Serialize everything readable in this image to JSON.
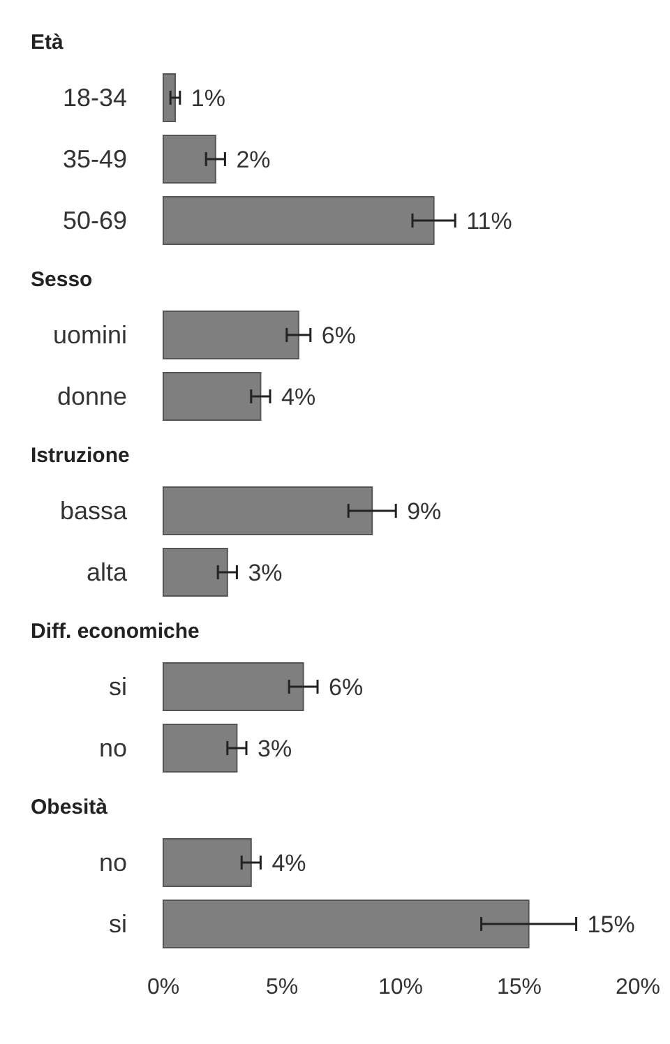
{
  "chart_data": {
    "type": "bar",
    "orientation": "horizontal",
    "categories": [
      null,
      "18-34",
      "35-49",
      "50-69",
      null,
      "uomini",
      "donne",
      null,
      "bassa",
      "alta",
      null,
      "si",
      "no",
      null,
      "no",
      "si"
    ],
    "annotations": [
      "Età",
      "Sesso",
      "Istruzione",
      "Diff. economiche",
      "Obesità"
    ],
    "values": [
      null,
      0.5,
      2.2,
      11.4,
      null,
      5.7,
      4.1,
      null,
      8.8,
      2.7,
      null,
      5.9,
      3.1,
      null,
      3.7,
      15.4
    ],
    "errors": [
      null,
      0.2,
      0.4,
      0.9,
      null,
      0.5,
      0.4,
      null,
      1.0,
      0.4,
      null,
      0.6,
      0.4,
      null,
      0.4,
      2.0
    ],
    "value_labels": [
      null,
      "1%",
      "2%",
      "11%",
      null,
      "6%",
      "4%",
      null,
      "9%",
      "3%",
      null,
      "6%",
      "3%",
      null,
      "4%",
      "15%"
    ],
    "color": "#7f7f7f",
    "xlim": [
      0,
      20
    ],
    "xticks": [
      {
        "value": 0,
        "label": "0%"
      },
      {
        "value": 5,
        "label": "5%"
      },
      {
        "value": 10,
        "label": "10%"
      },
      {
        "value": 15,
        "label": "15%"
      },
      {
        "value": 20,
        "label": "20%"
      }
    ],
    "grid": false
  }
}
